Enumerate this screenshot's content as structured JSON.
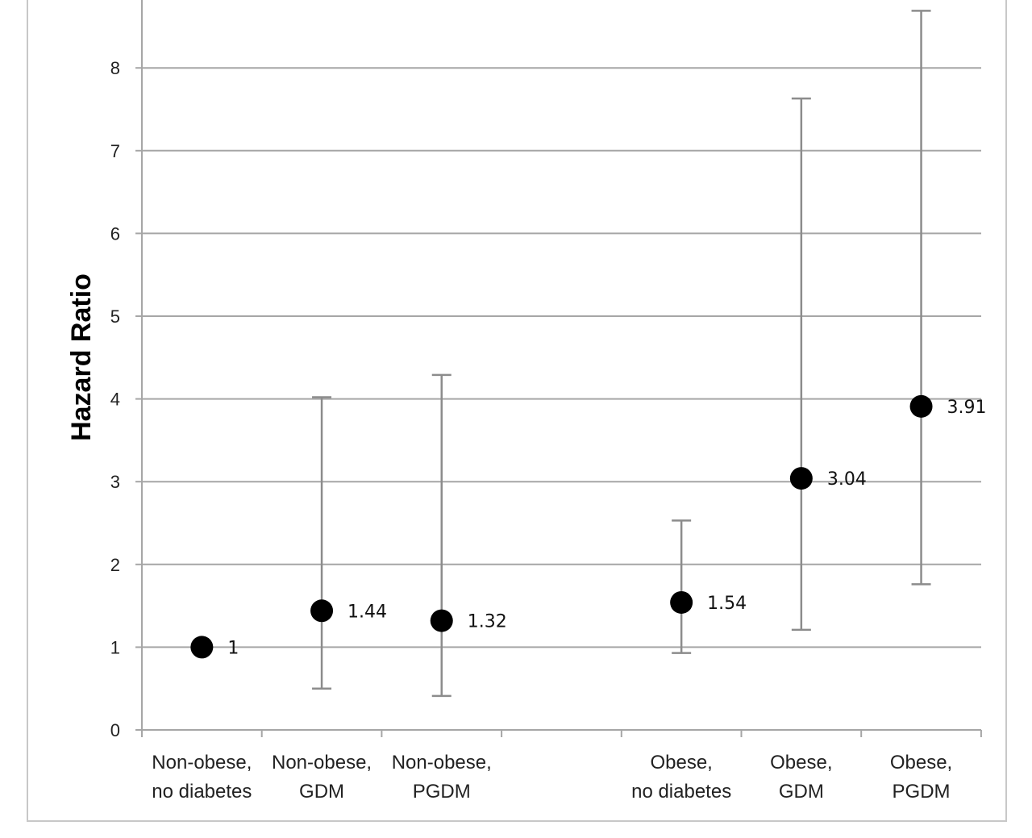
{
  "chart_data": {
    "type": "scatter",
    "title": "",
    "xlabel": "",
    "ylabel": "Hazard Ratio",
    "ylim": [
      0,
      8.7
    ],
    "yticks": [
      0,
      1,
      2,
      3,
      4,
      5,
      6,
      7,
      8
    ],
    "grid": true,
    "legend": "none",
    "categories": [
      [
        "Non-obese,",
        "no diabetes"
      ],
      [
        "Non-obese,",
        "GDM"
      ],
      [
        "Non-obese,",
        "PGDM"
      ],
      [
        "",
        ""
      ],
      [
        "Obese,",
        "no diabetes"
      ],
      [
        "Obese,",
        "GDM"
      ],
      [
        "Obese,",
        "PGDM"
      ]
    ],
    "points": [
      {
        "category_index": 0,
        "value": 1,
        "label": "1",
        "ci_low": null,
        "ci_high": null
      },
      {
        "category_index": 1,
        "value": 1.44,
        "label": "1.44",
        "ci_low": 0.5,
        "ci_high": 4.02
      },
      {
        "category_index": 2,
        "value": 1.32,
        "label": "1.32",
        "ci_low": 0.41,
        "ci_high": 4.29
      },
      {
        "category_index": 4,
        "value": 1.54,
        "label": "1.54",
        "ci_low": 0.93,
        "ci_high": 2.53
      },
      {
        "category_index": 5,
        "value": 3.04,
        "label": "3.04",
        "ci_low": 1.21,
        "ci_high": 7.63
      },
      {
        "category_index": 6,
        "value": 3.91,
        "label": "3.91",
        "ci_low": 1.76,
        "ci_high": 8.69
      }
    ],
    "colors": {
      "marker": "#000000",
      "errorbar": "#8c8c8c",
      "grid": "#a6a6a6",
      "axis": "#a6a6a6",
      "frame": "#c8c8c8"
    }
  }
}
